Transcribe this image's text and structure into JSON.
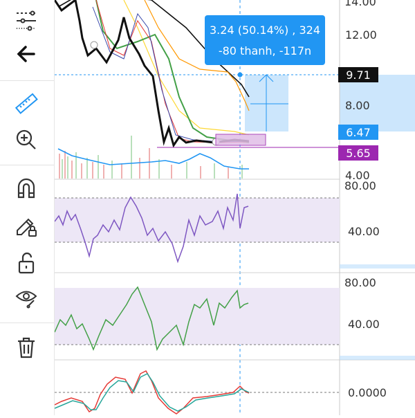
{
  "colors": {
    "accent": "#2196f3",
    "tag_dark": "#111111",
    "tag_purple": "#9c27b0",
    "range_fill": "#bbdefb",
    "oscillator_fill": "#ede7f6",
    "rsi_line": "#7e57c2",
    "stoch_line": "#43a047",
    "macd_line": "#e53935",
    "signal_line": "#26a69a"
  },
  "toolbar": {
    "icons": [
      "settings-sliders-icon",
      "back-arrow-icon",
      "ruler-icon",
      "zoom-in-icon",
      "magnet-icon",
      "pencil-lock-icon",
      "unlock-icon",
      "eye-icon",
      "trash-icon"
    ]
  },
  "measure_tooltip": {
    "line1": "3.24 (50.14%) , 324",
    "line2": "-80 thanh, -117n"
  },
  "price_axis": {
    "labels": [
      "14.00",
      "12.00",
      "8.00",
      "4.00"
    ],
    "tag_high": "9.71",
    "tag_low": "6.47",
    "tag_current": "5.65"
  },
  "rsi_panel": {
    "labels": [
      "80.00",
      "40.00"
    ]
  },
  "stoch_panel": {
    "labels": [
      "80.00",
      "40.00"
    ]
  },
  "macd_panel": {
    "labels": [
      "0.0000"
    ]
  }
}
